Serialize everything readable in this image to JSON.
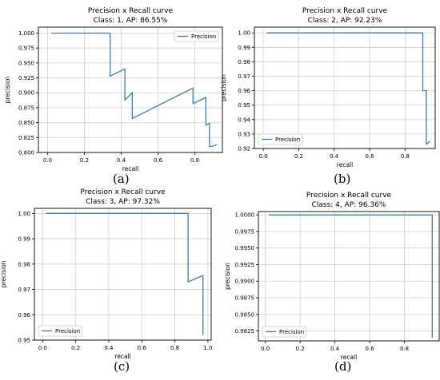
{
  "captions": [
    "(a)",
    "(b)",
    "(c)",
    "(d)"
  ],
  "colors": {
    "series": "#3a7fb3",
    "grid": "#d0d0d0",
    "axis": "#000000"
  },
  "chart_data": [
    {
      "type": "line",
      "title": "Precision x Recall curve",
      "subtitle": "Class: 1, AP: 86.55%",
      "xlabel": "recall",
      "ylabel": "precision",
      "xlim": [
        -0.05,
        0.95
      ],
      "ylim": [
        0.8,
        1.01
      ],
      "xticks": [
        "0.0",
        "0.2",
        "0.4",
        "0.6",
        "0.8"
      ],
      "yticks": [
        "0.800",
        "0.825",
        "0.850",
        "0.875",
        "0.900",
        "0.925",
        "0.950",
        "0.975",
        "1.000"
      ],
      "grid": true,
      "legend_position": "upper right",
      "series": [
        {
          "name": "Precision",
          "x": [
            0.02,
            0.34,
            0.34,
            0.42,
            0.42,
            0.46,
            0.46,
            0.79,
            0.79,
            0.86,
            0.86,
            0.88,
            0.88,
            0.89,
            0.89,
            0.92
          ],
          "y": [
            1.0,
            1.0,
            0.928,
            0.94,
            0.888,
            0.9,
            0.857,
            0.908,
            0.882,
            0.892,
            0.846,
            0.849,
            0.81,
            0.81,
            0.81,
            0.813
          ]
        }
      ]
    },
    {
      "type": "line",
      "title": "Precision x Recall curve",
      "subtitle": "Class: 2, AP: 92.23%",
      "xlabel": "recall",
      "ylabel": "precision",
      "xlim": [
        -0.05,
        0.97
      ],
      "ylim": [
        0.92,
        1.004
      ],
      "xticks": [
        "0.0",
        "0.2",
        "0.4",
        "0.6",
        "0.8"
      ],
      "yticks": [
        "0.92",
        "0.93",
        "0.94",
        "0.95",
        "0.96",
        "0.97",
        "0.98",
        "0.99",
        "1.00"
      ],
      "grid": true,
      "legend_position": "lower left",
      "series": [
        {
          "name": "Precision",
          "x": [
            0.02,
            0.9,
            0.9,
            0.92,
            0.92,
            0.94
          ],
          "y": [
            1.0,
            1.0,
            0.96,
            0.96,
            0.923,
            0.925
          ]
        }
      ]
    },
    {
      "type": "line",
      "title": "Precision x Recall curve",
      "subtitle": "Class: 3, AP: 97.32%",
      "xlabel": "recall",
      "ylabel": "precision",
      "xlim": [
        -0.05,
        1.02
      ],
      "ylim": [
        0.95,
        1.002
      ],
      "xticks": [
        "0.0",
        "0.2",
        "0.4",
        "0.6",
        "0.8",
        "1.0"
      ],
      "yticks": [
        "0.95",
        "0.96",
        "0.97",
        "0.98",
        "0.99",
        "1.00"
      ],
      "grid": true,
      "legend_position": "lower left",
      "series": [
        {
          "name": "Precision",
          "x": [
            0.02,
            0.88,
            0.88,
            0.97,
            0.97
          ],
          "y": [
            1.0,
            1.0,
            0.973,
            0.9755,
            0.952
          ]
        }
      ]
    },
    {
      "type": "line",
      "title": "Precision x Recall curve",
      "subtitle": "Class: 4, AP: 96.36%",
      "xlabel": "recall",
      "ylabel": "precision",
      "xlim": [
        -0.04,
        1.0
      ],
      "ylim": [
        0.981,
        1.0005
      ],
      "xticks": [
        "0.0",
        "0.2",
        "0.4",
        "0.6",
        "0.8"
      ],
      "yticks": [
        "0.9825",
        "0.9850",
        "0.9875",
        "0.9900",
        "0.9925",
        "0.9950",
        "0.9975",
        "1.0000"
      ],
      "grid": true,
      "legend_position": "lower left",
      "series": [
        {
          "name": "Precision",
          "x": [
            0.02,
            0.96,
            0.96
          ],
          "y": [
            1.0,
            1.0,
            0.9815
          ]
        }
      ]
    }
  ]
}
